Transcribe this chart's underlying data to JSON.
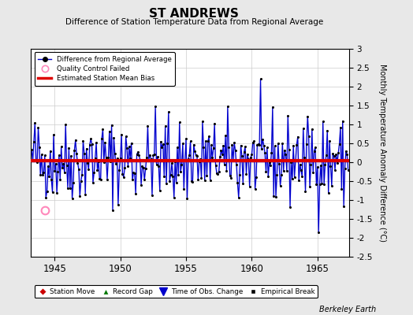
{
  "title": "ST ANDREWS",
  "subtitle": "Difference of Station Temperature Data from Regional Average",
  "ylabel": "Monthly Temperature Anomaly Difference (°C)",
  "xlabel_bottom": "Berkeley Earth",
  "bias_value": 0.05,
  "ylim": [
    -2.5,
    3.0
  ],
  "xlim": [
    1943.2,
    1967.4
  ],
  "xticks": [
    1945,
    1950,
    1955,
    1960,
    1965
  ],
  "yticks": [
    -2.5,
    -2,
    -1.5,
    -1,
    -0.5,
    0,
    0.5,
    1,
    1.5,
    2,
    2.5,
    3
  ],
  "background_color": "#e8e8e8",
  "plot_bg_color": "#ffffff",
  "line_color": "#0000cc",
  "bias_color": "#dd0000",
  "qc_fail_color": "#ffaacc",
  "grid_color": "#cccccc",
  "seed": 42,
  "n_points": 290,
  "start_year": 1943.25,
  "qc_fail_x": 1944.25,
  "qc_fail_y": -1.28
}
